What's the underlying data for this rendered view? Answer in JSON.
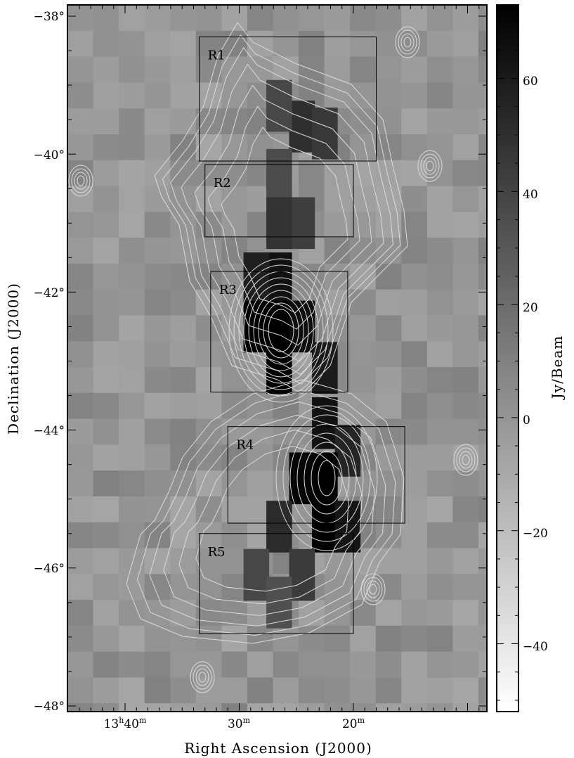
{
  "chart_data": {
    "type": "heatmap",
    "xlabel": "Right Ascension (J2000)",
    "ylabel": "Declination (J2000)",
    "colorbar_label": "Jy/Beam",
    "x_ticks": [
      {
        "h": "13",
        "m": "40",
        "ra_min": 40
      },
      {
        "h": "",
        "m": "30",
        "ra_min": 30
      },
      {
        "h": "",
        "m": "20",
        "ra_min": 20
      }
    ],
    "y_ticks": [
      {
        "label": "−38°",
        "value": -38
      },
      {
        "label": "−40°",
        "value": -40
      },
      {
        "label": "−42°",
        "value": -42
      },
      {
        "label": "−44°",
        "value": -44
      },
      {
        "label": "−46°",
        "value": -46
      },
      {
        "label": "−48°",
        "value": -48
      }
    ],
    "x_range_ra_min": [
      45,
      8.5
    ],
    "y_range_deg": [
      -48.1,
      -37.8
    ],
    "colorbar_ticks": [
      {
        "label": "60",
        "value": 60
      },
      {
        "label": "40",
        "value": 40
      },
      {
        "label": "20",
        "value": 20
      },
      {
        "label": "0",
        "value": 0
      },
      {
        "label": "−20",
        "value": -20
      },
      {
        "label": "−40",
        "value": -40
      }
    ],
    "colorbar_range": [
      -52,
      73
    ],
    "regions": [
      {
        "label": "R1",
        "ra_min": [
          33.5,
          18
        ],
        "dec": [
          -38.3,
          -40.1
        ]
      },
      {
        "label": "R2",
        "ra_min": [
          33,
          20
        ],
        "dec": [
          -40.15,
          -41.2
        ]
      },
      {
        "label": "R3",
        "ra_min": [
          32.5,
          20.5
        ],
        "dec": [
          -41.7,
          -43.45
        ]
      },
      {
        "label": "R4",
        "ra_min": [
          31,
          15.5
        ],
        "dec": [
          -43.95,
          -45.35
        ]
      },
      {
        "label": "R5",
        "ra_min": [
          33.5,
          20
        ],
        "dec": [
          -45.5,
          -46.95
        ]
      }
    ],
    "map_pixels": [
      {
        "ra_min": 24.5,
        "dec": -39.6,
        "value": 50
      },
      {
        "ra_min": 22.5,
        "dec": -39.7,
        "value": 45
      },
      {
        "ra_min": 26.5,
        "dec": -39.3,
        "value": 38
      },
      {
        "ra_min": 26.5,
        "dec": -40.3,
        "value": 36
      },
      {
        "ra_min": 24.5,
        "dec": -41.0,
        "value": 42
      },
      {
        "ra_min": 26.5,
        "dec": -41.0,
        "value": 48
      },
      {
        "ra_min": 26.5,
        "dec": -41.8,
        "value": 64
      },
      {
        "ra_min": 28.5,
        "dec": -41.8,
        "value": 58
      },
      {
        "ra_min": 26.5,
        "dec": -42.5,
        "value": 73
      },
      {
        "ra_min": 28.5,
        "dec": -42.5,
        "value": 73
      },
      {
        "ra_min": 24.5,
        "dec": -42.5,
        "value": 66
      },
      {
        "ra_min": 26.5,
        "dec": -43.1,
        "value": 73
      },
      {
        "ra_min": 22.5,
        "dec": -43.1,
        "value": 60
      },
      {
        "ra_min": 22.5,
        "dec": -43.9,
        "value": 64
      },
      {
        "ra_min": 20.5,
        "dec": -44.3,
        "value": 55
      },
      {
        "ra_min": 22.5,
        "dec": -44.7,
        "value": 73
      },
      {
        "ra_min": 24.5,
        "dec": -44.7,
        "value": 70
      },
      {
        "ra_min": 22.5,
        "dec": -45.4,
        "value": 73
      },
      {
        "ra_min": 20.5,
        "dec": -45.4,
        "value": 62
      },
      {
        "ra_min": 26.5,
        "dec": -45.4,
        "value": 52
      },
      {
        "ra_min": 24.5,
        "dec": -46.1,
        "value": 44
      },
      {
        "ra_min": 28.5,
        "dec": -46.1,
        "value": 38
      },
      {
        "ra_min": 26.5,
        "dec": -46.5,
        "value": 34
      }
    ]
  }
}
